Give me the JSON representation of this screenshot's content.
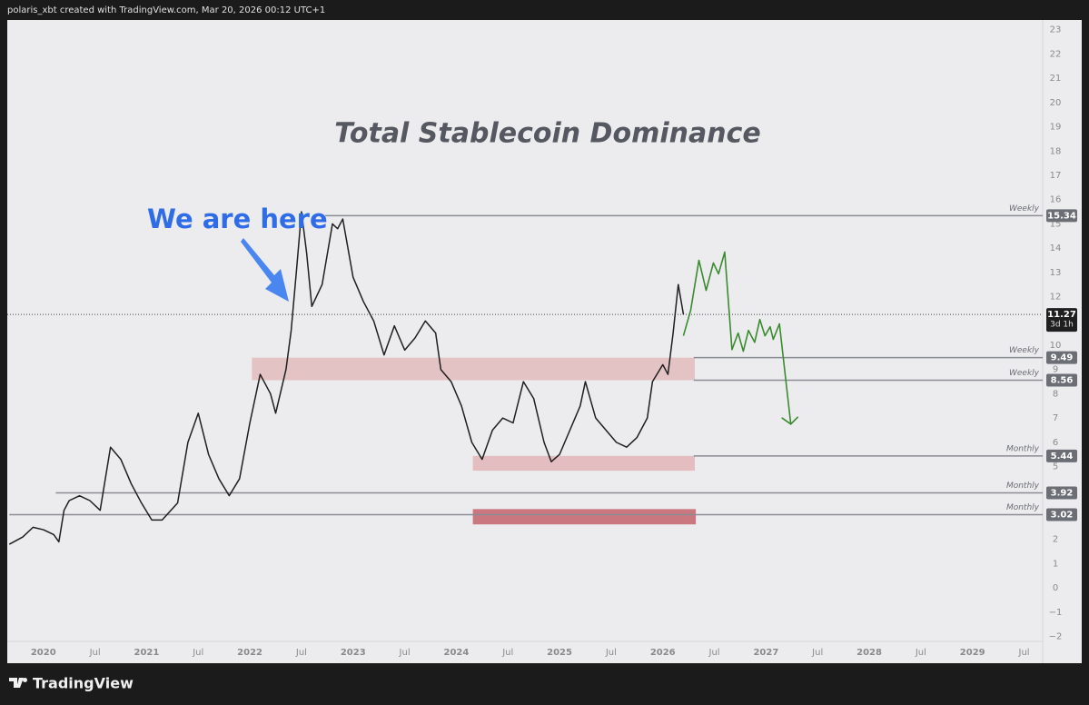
{
  "header": "polaris_xbt created with TradingView.com, Mar 20, 2026 00:12 UTC+1",
  "brand": "TradingView",
  "chart_data": {
    "type": "line",
    "title": "Total Stablecoin Dominance",
    "annotation": "We are here",
    "color": "#1f1f1f",
    "x": [
      2019.67,
      2019.8,
      2019.9,
      2020.0,
      2020.1,
      2020.15,
      2020.2,
      2020.25,
      2020.35,
      2020.45,
      2020.55,
      2020.65,
      2020.75,
      2020.85,
      2020.95,
      2021.05,
      2021.15,
      2021.3,
      2021.4,
      2021.5,
      2021.6,
      2021.7,
      2021.8,
      2021.9,
      2022.0,
      2022.1,
      2022.2,
      2022.25,
      2022.35,
      2022.4,
      2022.45,
      2022.5,
      2022.55,
      2022.6,
      2022.7,
      2022.8,
      2022.85,
      2022.9,
      2023.0,
      2023.1,
      2023.2,
      2023.3,
      2023.4,
      2023.5,
      2023.6,
      2023.7,
      2023.8,
      2023.85,
      2023.95,
      2024.05,
      2024.15,
      2024.25,
      2024.35,
      2024.45,
      2024.55,
      2024.65,
      2024.75,
      2024.85,
      2024.92,
      2025.0,
      2025.1,
      2025.2,
      2025.25,
      2025.35,
      2025.45,
      2025.55,
      2025.65,
      2025.75,
      2025.85,
      2025.9,
      2026.0,
      2026.05,
      2026.1,
      2026.15,
      2026.2
    ],
    "values": [
      1.8,
      2.1,
      2.5,
      2.4,
      2.2,
      1.9,
      3.2,
      3.6,
      3.8,
      3.6,
      3.2,
      5.8,
      5.3,
      4.3,
      3.5,
      2.8,
      2.8,
      3.5,
      6.0,
      7.2,
      5.5,
      4.5,
      3.8,
      4.5,
      6.8,
      8.8,
      8.0,
      7.2,
      9.0,
      10.6,
      13.0,
      15.5,
      13.8,
      11.6,
      12.5,
      15.0,
      14.8,
      15.2,
      12.8,
      11.8,
      11.0,
      9.6,
      10.8,
      9.8,
      10.3,
      11.0,
      10.5,
      9.0,
      8.5,
      7.5,
      6.0,
      5.3,
      6.5,
      7.0,
      6.8,
      8.5,
      7.8,
      6.0,
      5.2,
      5.5,
      6.5,
      7.5,
      8.5,
      7.0,
      6.5,
      6.0,
      5.8,
      6.2,
      7.0,
      8.5,
      9.2,
      8.8,
      10.5,
      12.5,
      11.27
    ],
    "projection": {
      "color": "#3a8a2e",
      "x": [
        2026.2,
        2026.27,
        2026.35,
        2026.42,
        2026.49,
        2026.54,
        2026.6,
        2026.67,
        2026.73,
        2026.78,
        2026.83,
        2026.89,
        2026.94,
        2026.99,
        2027.04,
        2027.07,
        2027.13,
        2027.24
      ],
      "values": [
        10.39,
        11.44,
        13.5,
        12.26,
        13.39,
        12.94,
        13.84,
        9.82,
        10.5,
        9.75,
        10.61,
        10.12,
        11.06,
        10.39,
        10.76,
        10.24,
        10.88,
        6.75
      ]
    },
    "current": {
      "value": 11.27,
      "countdown": "3d 1h"
    },
    "levels": [
      {
        "value": 15.34,
        "label": "Weekly",
        "start": 2022.73
      },
      {
        "value": 9.49,
        "label": "Weekly",
        "start": 2026.3
      },
      {
        "value": 8.56,
        "label": "Weekly",
        "start": 2026.3
      },
      {
        "value": 5.44,
        "label": "Monthly",
        "start": 2026.3
      },
      {
        "value": 3.92,
        "label": "Monthly",
        "start": 2020.12
      },
      {
        "value": 3.02,
        "label": "Monthly",
        "start": 2019.67
      }
    ],
    "zones": [
      {
        "x": [
          2022.02,
          2026.31
        ],
        "y": [
          8.56,
          9.49
        ],
        "color": "rgba(214,120,120,0.35)"
      },
      {
        "x": [
          2024.16,
          2026.31
        ],
        "y": [
          4.83,
          5.44
        ],
        "color": "rgba(214,120,120,0.4)"
      },
      {
        "x": [
          2024.16,
          2026.32
        ],
        "y": [
          2.62,
          3.25
        ],
        "color": "rgba(190,70,80,0.7)"
      }
    ],
    "xlim": [
      2019.65,
      2029.68
    ],
    "ylim": [
      -3.1,
      23.4
    ],
    "yticks": [
      {
        "value": -2,
        "label": "−2"
      },
      {
        "value": -1,
        "label": "−1"
      },
      0,
      1,
      2,
      3,
      4,
      5,
      6,
      7,
      8,
      9,
      10,
      11,
      12,
      13,
      14,
      15,
      16,
      17,
      18,
      19,
      20,
      21,
      22,
      23
    ],
    "xticks": [
      2020,
      {
        "value": 2020.5,
        "label": "Jul"
      },
      2021,
      {
        "value": 2021.5,
        "label": "Jul"
      },
      2022,
      {
        "value": 2022.5,
        "label": "Jul"
      },
      2023,
      {
        "value": 2023.5,
        "label": "Jul"
      },
      2024,
      {
        "value": 2024.5,
        "label": "Jul"
      },
      2025,
      {
        "value": 2025.5,
        "label": "Jul"
      },
      2026,
      {
        "value": 2026.5,
        "label": "Jul"
      },
      2027,
      {
        "value": 2027.5,
        "label": "Jul"
      },
      2028,
      {
        "value": 2028.5,
        "label": "Jul"
      },
      2029,
      {
        "value": 2029.5,
        "label": "Jul"
      }
    ]
  }
}
